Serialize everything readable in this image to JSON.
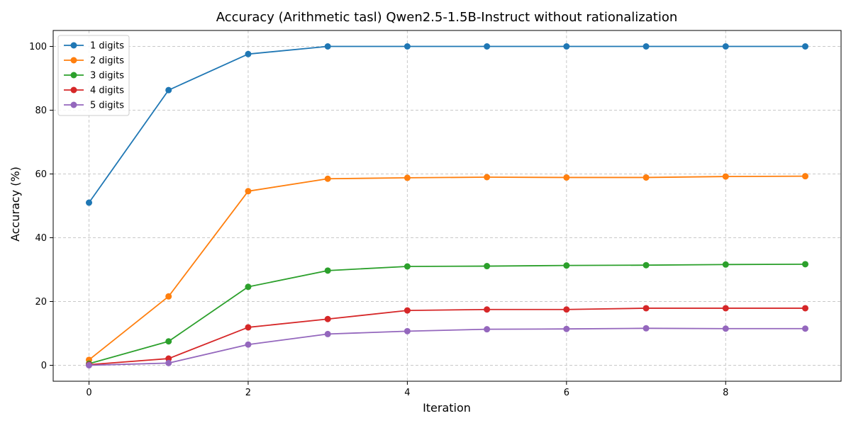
{
  "chart_data": {
    "type": "line",
    "title": "Accuracy (Arithmetic tasl) Qwen2.5-1.5B-Instruct without rationalization",
    "xlabel": "Iteration",
    "ylabel": "Accuracy (%)",
    "xlim": [
      -0.45,
      9.45
    ],
    "ylim": [
      -5,
      105
    ],
    "xticks": [
      0,
      2,
      4,
      6,
      8
    ],
    "yticks": [
      0,
      20,
      40,
      60,
      80,
      100
    ],
    "grid": true,
    "legend_position": "top-left",
    "x": [
      0,
      1,
      2,
      3,
      4,
      5,
      6,
      7,
      8,
      9
    ],
    "series": [
      {
        "name": "1 digits",
        "color": "#1f77b4",
        "values": [
          51.0,
          86.3,
          97.6,
          100.0,
          100.0,
          100.0,
          100.0,
          100.0,
          100.0,
          100.0
        ]
      },
      {
        "name": "2 digits",
        "color": "#ff7f0e",
        "values": [
          1.7,
          21.6,
          54.6,
          58.5,
          58.8,
          59.0,
          58.9,
          58.9,
          59.2,
          59.3
        ]
      },
      {
        "name": "3 digits",
        "color": "#2ca02c",
        "values": [
          0.5,
          7.5,
          24.6,
          29.7,
          31.0,
          31.1,
          31.3,
          31.4,
          31.6,
          31.7
        ]
      },
      {
        "name": "4 digits",
        "color": "#d62728",
        "values": [
          0.2,
          2.1,
          11.9,
          14.5,
          17.2,
          17.5,
          17.5,
          17.9,
          17.9,
          17.9
        ]
      },
      {
        "name": "5 digits",
        "color": "#9467bd",
        "values": [
          0.0,
          0.7,
          6.5,
          9.8,
          10.7,
          11.3,
          11.4,
          11.6,
          11.5,
          11.5
        ]
      }
    ]
  }
}
